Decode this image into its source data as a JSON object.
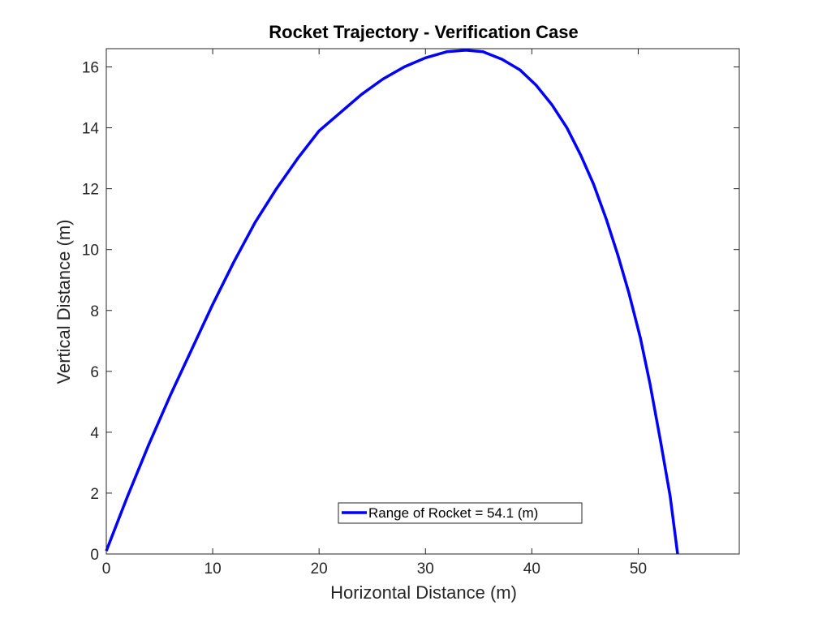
{
  "chart_data": {
    "type": "line",
    "title": "Rocket Trajectory - Verification Case",
    "xlabel": "Horizontal Distance (m)",
    "ylabel": "Vertical Distance (m)",
    "xlim": [
      0,
      59.5
    ],
    "ylim": [
      0,
      16.6
    ],
    "xticks": [
      0,
      10,
      20,
      30,
      40,
      50
    ],
    "yticks": [
      0,
      2,
      4,
      6,
      8,
      10,
      12,
      14,
      16
    ],
    "grid": false,
    "legend_position": "bottom-center",
    "series": [
      {
        "name": "Range of Rocket = 54.1 (m)",
        "color": "#0000ff",
        "x": [
          0,
          2.0,
          4.0,
          6.0,
          8.0,
          10.0,
          12.0,
          14.0,
          16.0,
          18.0,
          20.0,
          22.0,
          24.0,
          26.0,
          28.0,
          30.0,
          32.0,
          33.8,
          35.4,
          37.2,
          38.9,
          40.4,
          41.9,
          43.3,
          44.6,
          45.8,
          47.0,
          48.1,
          49.1,
          50.2,
          51.1,
          52.1,
          53.0,
          53.7
        ],
        "y": [
          0.1,
          1.9,
          3.6,
          5.2,
          6.7,
          8.2,
          9.6,
          10.9,
          12.0,
          13.0,
          13.9,
          14.5,
          15.1,
          15.6,
          16.0,
          16.3,
          16.5,
          16.55,
          16.5,
          16.25,
          15.9,
          15.4,
          14.75,
          14.0,
          13.1,
          12.15,
          11.0,
          9.8,
          8.6,
          7.1,
          5.6,
          3.7,
          1.9,
          0.0
        ]
      }
    ]
  }
}
